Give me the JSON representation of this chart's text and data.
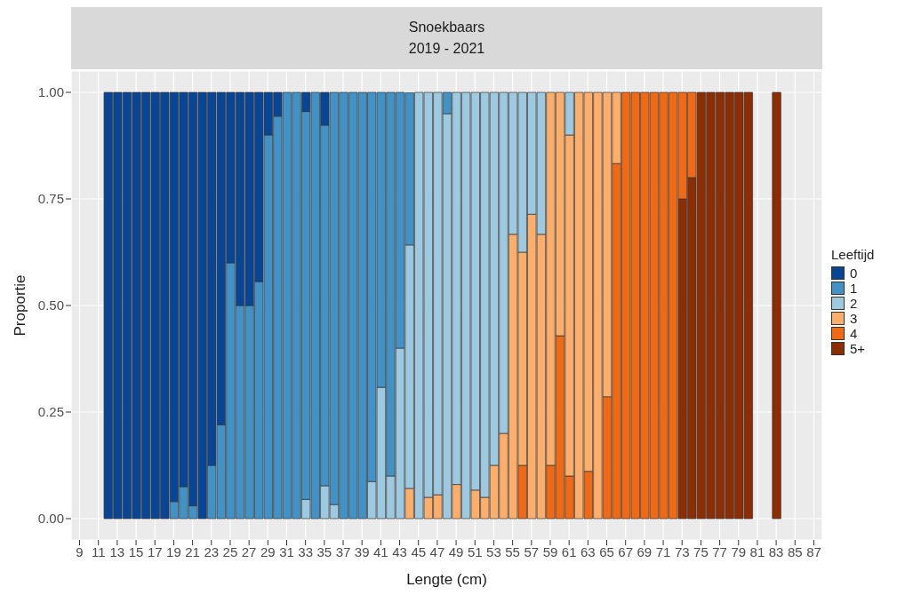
{
  "chart_data": {
    "type": "bar",
    "stacked": true,
    "title": "Snoekbaars",
    "subtitle": "2019 - 2021",
    "xlabel": "Lengte (cm)",
    "ylabel": "Proportie",
    "legend_title": "Leeftijd",
    "legend": "right",
    "grid": true,
    "x": [
      12,
      13,
      14,
      15,
      16,
      17,
      18,
      19,
      20,
      21,
      22,
      23,
      24,
      25,
      26,
      27,
      28,
      29,
      30,
      31,
      32,
      33,
      34,
      35,
      36,
      37,
      38,
      39,
      40,
      41,
      42,
      43,
      44,
      45,
      46,
      47,
      48,
      49,
      50,
      51,
      52,
      53,
      54,
      55,
      56,
      57,
      58,
      59,
      60,
      61,
      62,
      63,
      64,
      65,
      66,
      67,
      68,
      69,
      70,
      71,
      72,
      73,
      74,
      75,
      76,
      77,
      78,
      79,
      80,
      83
    ],
    "xlim": [
      8.1,
      87.9
    ],
    "xticks": [
      9,
      11,
      13,
      15,
      17,
      19,
      21,
      23,
      25,
      27,
      29,
      31,
      33,
      35,
      37,
      39,
      41,
      43,
      45,
      47,
      49,
      51,
      53,
      55,
      57,
      59,
      61,
      63,
      65,
      67,
      69,
      71,
      73,
      75,
      77,
      79,
      81,
      83,
      85,
      87
    ],
    "ylim": [
      -0.05,
      1.05
    ],
    "yticks": [
      {
        "value": 0,
        "label": "0.00"
      },
      {
        "value": 0.25,
        "label": "0.25"
      },
      {
        "value": 0.5,
        "label": "0.50"
      },
      {
        "value": 0.75,
        "label": "0.75"
      },
      {
        "value": 1,
        "label": "1.00"
      }
    ],
    "series": [
      {
        "name": "5+",
        "color": "#8c2d04",
        "values": [
          0,
          0,
          0,
          0,
          0,
          0,
          0,
          0,
          0,
          0,
          0,
          0,
          0,
          0,
          0,
          0,
          0,
          0,
          0,
          0,
          0,
          0,
          0,
          0,
          0,
          0,
          0,
          0,
          0,
          0,
          0,
          0,
          0,
          0,
          0,
          0,
          0,
          0,
          0,
          0,
          0,
          0,
          0,
          0,
          0,
          0,
          0,
          0,
          0,
          0,
          0,
          0,
          0,
          0,
          0,
          0,
          0,
          0,
          0,
          0,
          0,
          0.75,
          0.8,
          1,
          1,
          1,
          1,
          1,
          1,
          1
        ]
      },
      {
        "name": "4",
        "color": "#f16913",
        "values": [
          0,
          0,
          0,
          0,
          0,
          0,
          0,
          0,
          0,
          0,
          0,
          0,
          0,
          0,
          0,
          0,
          0,
          0,
          0,
          0,
          0,
          0,
          0,
          0,
          0,
          0,
          0,
          0,
          0,
          0,
          0,
          0,
          0,
          0,
          0,
          0,
          0,
          0,
          0,
          0,
          0,
          0,
          0,
          0,
          0.125,
          0,
          0,
          0.125,
          0.429,
          0.1,
          0,
          0.111,
          0,
          0.286,
          0.833,
          1,
          1,
          1,
          1,
          1,
          1,
          0.25,
          0.2,
          0,
          0,
          0,
          0,
          0,
          0,
          0
        ]
      },
      {
        "name": "3",
        "color": "#fdae6b",
        "values": [
          0,
          0,
          0,
          0,
          0,
          0,
          0,
          0,
          0,
          0,
          0,
          0,
          0,
          0,
          0,
          0,
          0,
          0,
          0,
          0,
          0,
          0,
          0,
          0,
          0,
          0,
          0,
          0,
          0,
          0,
          0,
          0,
          0.071,
          0,
          0.05,
          0.056,
          0,
          0.08,
          0,
          0.067,
          0.05,
          0.125,
          0.2,
          0.667,
          0.5,
          0.714,
          0.667,
          0.875,
          0.571,
          0.8,
          1,
          0.889,
          1,
          0.714,
          0.167,
          0,
          0,
          0,
          0,
          0,
          0,
          0,
          0,
          0,
          0,
          0,
          0,
          0,
          0,
          0
        ]
      },
      {
        "name": "2",
        "color": "#9ecae1",
        "values": [
          0,
          0,
          0,
          0,
          0,
          0,
          0,
          0,
          0,
          0,
          0,
          0,
          0,
          0,
          0,
          0,
          0,
          0,
          0,
          0,
          0,
          0.045,
          0,
          0.077,
          0.033,
          0,
          0,
          0,
          0.087,
          0.308,
          0.1,
          0.4,
          0.571,
          1,
          0.95,
          0.944,
          0.95,
          0.92,
          1,
          0.933,
          0.95,
          0.875,
          0.8,
          0.333,
          0.375,
          0.286,
          0.333,
          0,
          0,
          0.1,
          0,
          0,
          0,
          0,
          0,
          0,
          0,
          0,
          0,
          0,
          0,
          0,
          0,
          0,
          0,
          0,
          0,
          0,
          0,
          0
        ]
      },
      {
        "name": "1",
        "color": "#4292c6",
        "values": [
          0,
          0,
          0,
          0,
          0,
          0,
          0,
          0.04,
          0.075,
          0.03,
          0,
          0.125,
          0.22,
          0.6,
          0.5,
          0.5,
          0.556,
          0.9,
          0.944,
          1,
          1,
          0.91,
          1,
          0.846,
          0.967,
          1,
          1,
          1,
          0.913,
          0.692,
          0.9,
          0.6,
          0.357,
          0,
          0,
          0,
          0.05,
          0,
          0,
          0,
          0,
          0,
          0,
          0,
          0,
          0,
          0,
          0,
          0,
          0,
          0,
          0,
          0,
          0,
          0,
          0,
          0,
          0,
          0,
          0,
          0,
          0,
          0,
          0,
          0,
          0,
          0,
          0,
          0,
          0
        ]
      },
      {
        "name": "0",
        "color": "#084594",
        "values": [
          1,
          1,
          1,
          1,
          1,
          1,
          1,
          0.96,
          0.925,
          0.97,
          1,
          0.875,
          0.78,
          0.4,
          0.5,
          0.5,
          0.444,
          0.1,
          0.056,
          0,
          0,
          0.045,
          0,
          0.077,
          0,
          0,
          0,
          0,
          0,
          0,
          0,
          0,
          0,
          0,
          0,
          0,
          0,
          0,
          0,
          0,
          0,
          0,
          0,
          0,
          0,
          0,
          0,
          0,
          0,
          0,
          0,
          0,
          0,
          0,
          0,
          0,
          0,
          0,
          0,
          0,
          0,
          0,
          0,
          0,
          0,
          0,
          0,
          0,
          0,
          0
        ]
      }
    ]
  }
}
